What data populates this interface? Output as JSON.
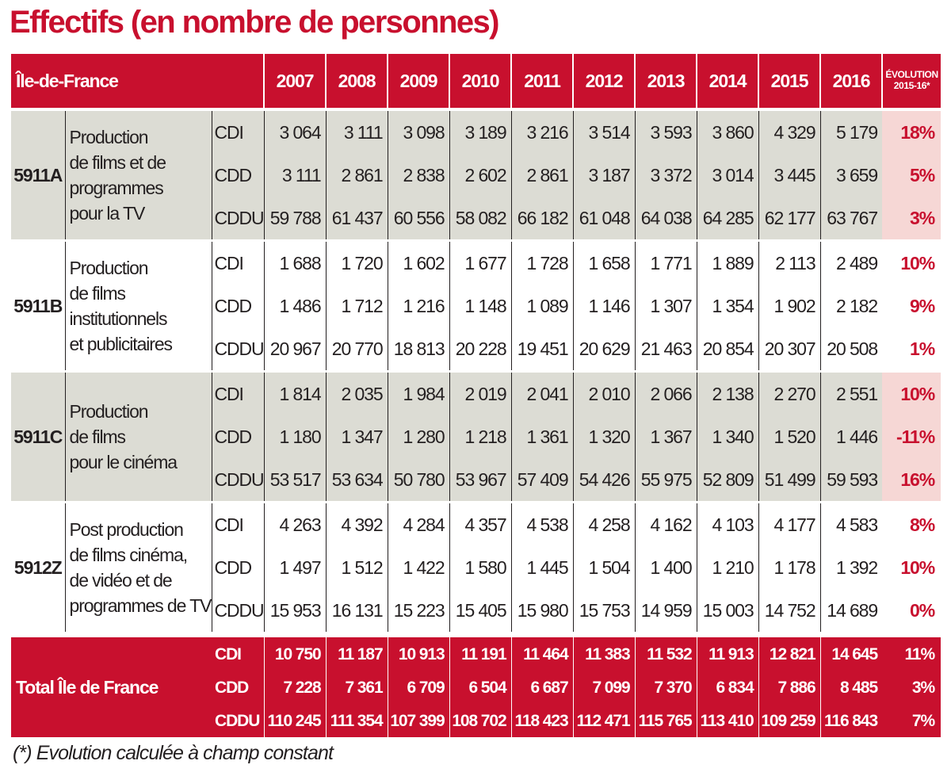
{
  "title": "Effectifs (en nombre de personnes)",
  "header": {
    "region": "Île-de-France",
    "years": [
      "2007",
      "2008",
      "2009",
      "2010",
      "2011",
      "2012",
      "2013",
      "2014",
      "2015",
      "2016"
    ],
    "evolution_line1": "ÉVOLUTION",
    "evolution_line2": "2015-16*"
  },
  "groups": [
    {
      "code": "5911A",
      "desc_lines": [
        "Production",
        "de films et de",
        "programmes",
        "pour la TV"
      ],
      "rows": [
        {
          "type": "CDI",
          "values": [
            "3 064",
            "3 111",
            "3 098",
            "3 189",
            "3 216",
            "3 514",
            "3 593",
            "3 860",
            "4 329",
            "5 179"
          ],
          "evolution": "18%"
        },
        {
          "type": "CDD",
          "values": [
            "3 111",
            "2 861",
            "2 838",
            "2 602",
            "2 861",
            "3 187",
            "3 372",
            "3 014",
            "3 445",
            "3 659"
          ],
          "evolution": "5%"
        },
        {
          "type": "CDDU",
          "values": [
            "59 788",
            "61 437",
            "60 556",
            "58 082",
            "66 182",
            "61 048",
            "64 038",
            "64 285",
            "62 177",
            "63 767"
          ],
          "evolution": "3%"
        }
      ]
    },
    {
      "code": "5911B",
      "desc_lines": [
        "Production",
        "de films",
        "institutionnels",
        "et publicitaires"
      ],
      "rows": [
        {
          "type": "CDI",
          "values": [
            "1 688",
            "1 720",
            "1 602",
            "1 677",
            "1 728",
            "1 658",
            "1 771",
            "1 889",
            "2 113",
            "2 489"
          ],
          "evolution": "10%"
        },
        {
          "type": "CDD",
          "values": [
            "1 486",
            "1 712",
            "1 216",
            "1 148",
            "1 089",
            "1 146",
            "1 307",
            "1 354",
            "1 902",
            "2 182"
          ],
          "evolution": "9%"
        },
        {
          "type": "CDDU",
          "values": [
            "20 967",
            "20 770",
            "18 813",
            "20 228",
            "19 451",
            "20 629",
            "21 463",
            "20 854",
            "20 307",
            "20 508"
          ],
          "evolution": "1%"
        }
      ]
    },
    {
      "code": "5911C",
      "desc_lines": [
        "Production",
        "de films",
        "pour le cinéma"
      ],
      "rows": [
        {
          "type": "CDI",
          "values": [
            "1 814",
            "2 035",
            "1 984",
            "2 019",
            "2 041",
            "2 010",
            "2 066",
            "2 138",
            "2 270",
            "2 551"
          ],
          "evolution": "10%"
        },
        {
          "type": "CDD",
          "values": [
            "1 180",
            "1 347",
            "1 280",
            "1 218",
            "1 361",
            "1 320",
            "1 367",
            "1 340",
            "1 520",
            "1 446"
          ],
          "evolution": "-11%"
        },
        {
          "type": "CDDU",
          "values": [
            "53 517",
            "53 634",
            "50 780",
            "53 967",
            "57 409",
            "54 426",
            "55 975",
            "52 809",
            "51 499",
            "59 593"
          ],
          "evolution": "16%"
        }
      ]
    },
    {
      "code": "5912Z",
      "desc_lines": [
        "Post production",
        "de films cinéma,",
        "de vidéo et de",
        "programmes de TV"
      ],
      "rows": [
        {
          "type": "CDI",
          "values": [
            "4 263",
            "4 392",
            "4 284",
            "4 357",
            "4 538",
            "4 258",
            "4 162",
            "4 103",
            "4 177",
            "4 583"
          ],
          "evolution": "8%"
        },
        {
          "type": "CDD",
          "values": [
            "1 497",
            "1 512",
            "1 422",
            "1 580",
            "1 445",
            "1 504",
            "1 400",
            "1 210",
            "1 178",
            "1 392"
          ],
          "evolution": "10%"
        },
        {
          "type": "CDDU",
          "values": [
            "15 953",
            "16 131",
            "15 223",
            "15 405",
            "15 980",
            "15 753",
            "14 959",
            "15 003",
            "14 752",
            "14 689"
          ],
          "evolution": "0%"
        }
      ]
    }
  ],
  "total": {
    "label": "Total Île de France",
    "rows": [
      {
        "type": "CDI",
        "values": [
          "10 750",
          "11 187",
          "10 913",
          "11 191",
          "11 464",
          "11 383",
          "11 532",
          "11 913",
          "12 821",
          "14 645"
        ],
        "evolution": "11%"
      },
      {
        "type": "CDD",
        "values": [
          "7 228",
          "7 361",
          "6 709",
          "6 504",
          "6 687",
          "7 099",
          "7 370",
          "6 834",
          "7 886",
          "8 485"
        ],
        "evolution": "3%"
      },
      {
        "type": "CDDU",
        "values": [
          "110 245",
          "111 354",
          "107 399",
          "108 702",
          "118 423",
          "112 471",
          "115 765",
          "113 410",
          "109 259",
          "116 843"
        ],
        "evolution": "7%"
      }
    ]
  },
  "footnote": "(*) Evolution calculée à champ constant"
}
